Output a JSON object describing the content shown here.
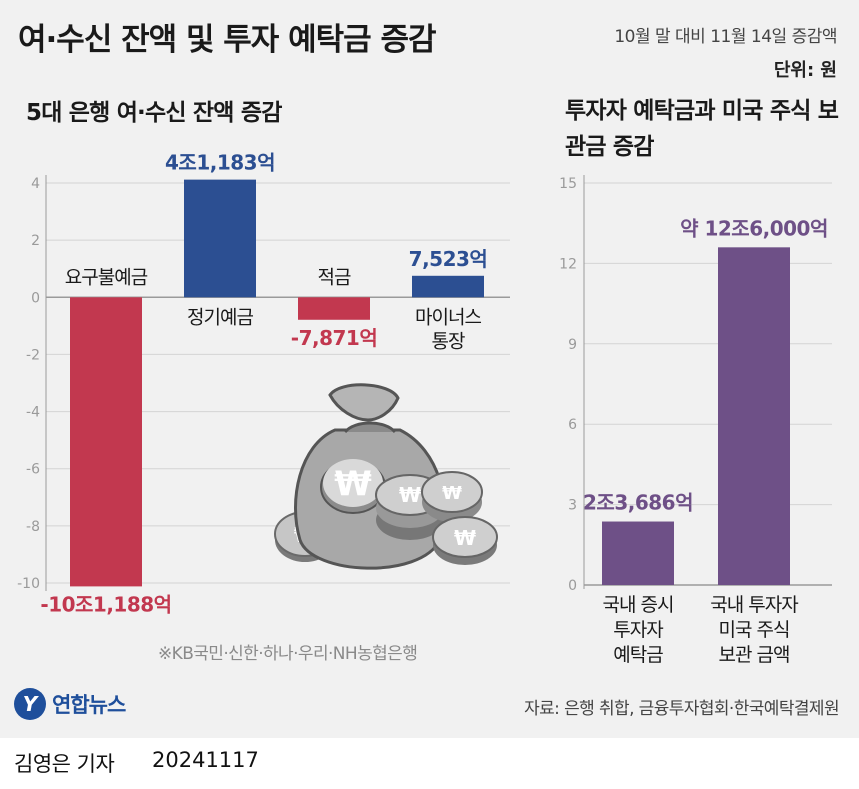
{
  "header": {
    "title": "여·수신 잔액 및 투자 예탁금 증감",
    "period": "10월 말 대비 11월 14일 증감액",
    "unit": "단위: 원"
  },
  "colors": {
    "positive": "#2c4f92",
    "negative": "#c2384f",
    "purple": "#6e5087",
    "grid": "#d4d4d4",
    "axis": "#9a9a9a"
  },
  "chart_data": [
    {
      "type": "bar",
      "title": "5대 은행 여·수신 잔액 증감",
      "categories": [
        "요구불예금",
        "정기예금",
        "적금",
        "마이너스 통장"
      ],
      "values": [
        -10.1188,
        4.1183,
        -0.7871,
        0.7523
      ],
      "value_labels": [
        "-10조1,188억",
        "4조1,183억",
        "-7,871억",
        "7,523억"
      ],
      "y_ticks": [
        "4",
        "2",
        "0",
        "-2",
        "-4",
        "-6",
        "-8",
        "-10"
      ],
      "ylim": [
        -10,
        4
      ],
      "grid": true,
      "note": "※KB국민·신한·하나·우리·NH농협은행"
    },
    {
      "type": "bar",
      "title": "투자자 예탁금과 미국 주식 보관금 증감",
      "categories": [
        "국내 증시 투자자 예탁금",
        "국내 투자자 미국 주식 보관 금액"
      ],
      "values": [
        2.3686,
        12.6
      ],
      "value_labels": [
        "2조3,686억",
        "약 12조6,000억"
      ],
      "y_ticks": [
        "15",
        "12",
        "9",
        "6",
        "3",
        "0"
      ],
      "ylim": [
        0,
        15
      ],
      "grid": true
    }
  ],
  "footer": {
    "logo_text": "연합뉴스",
    "source": "자료: 은행 취합, 금융투자협회·한국예탁결제원",
    "reporter": "김영은 기자",
    "date": "20241117"
  }
}
